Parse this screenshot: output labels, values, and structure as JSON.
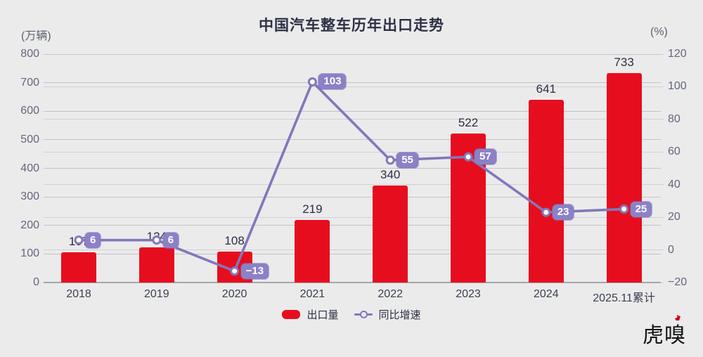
{
  "title": "中国汽车整车历年出口走势",
  "axes": {
    "left_unit": "(万辆)",
    "right_unit": "(%)"
  },
  "legend": {
    "bar": "出口量",
    "line": "同比增速"
  },
  "logo": {
    "text": "虎嗅"
  },
  "colors": {
    "background": "#ebebec",
    "bar": "#e60e1e",
    "line": "#8277bb",
    "marker_fill": "#ffffff",
    "badge_bg": "#8b81c6",
    "badge_text": "#ffffff",
    "grid_major": "#c3c3c8",
    "grid_minor": "#d1d1d6",
    "baseline": "#a5a5ab",
    "title_text": "#2c3144",
    "value_label": "#2a2e40"
  },
  "chart_data": {
    "type": "bar+line",
    "title": "中国汽车整车历年出口走势",
    "categories": [
      "2018",
      "2019",
      "2020",
      "2021",
      "2022",
      "2023",
      "2024",
      "2025.11累计"
    ],
    "series": [
      {
        "name": "出口量",
        "type": "bar",
        "axis": "left",
        "unit": "万辆",
        "values": [
          107,
          124,
          108,
          219,
          340,
          522,
          641,
          733
        ]
      },
      {
        "name": "同比增速",
        "type": "line",
        "axis": "right",
        "unit": "%",
        "values": [
          6,
          6,
          -13,
          103,
          55,
          57,
          23,
          25
        ]
      }
    ],
    "left_axis": {
      "label": "(万辆)",
      "min": 0,
      "max": 800,
      "step": 100,
      "ticks": [
        800,
        700,
        600,
        500,
        400,
        300,
        200,
        100,
        0
      ]
    },
    "right_axis": {
      "label": "(%)",
      "min": -20,
      "max": 120,
      "step": 20,
      "ticks": [
        120,
        100,
        80,
        60,
        40,
        20,
        0,
        -20
      ]
    },
    "grid": true,
    "legend_position": "bottom",
    "value_labels": "above bars and on line badges"
  }
}
